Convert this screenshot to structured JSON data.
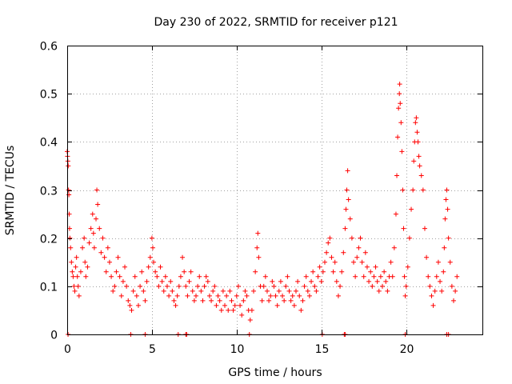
{
  "chart_data": {
    "type": "scatter",
    "title": "Day 230 of 2022, SRMTID for receiver p121",
    "xlabel": "GPS time / hours",
    "ylabel": "SRMTID / TECUs",
    "xlim": [
      0,
      24.5
    ],
    "ylim": [
      0,
      0.6
    ],
    "xticks": [
      0,
      5,
      10,
      15,
      20
    ],
    "yticks": [
      0,
      0.1,
      0.2,
      0.3,
      0.4,
      0.5,
      0.6
    ],
    "xtick_labels": [
      "0",
      "5",
      "10",
      "15",
      "20"
    ],
    "ytick_labels": [
      "0",
      "0.1",
      "0.2",
      "0.3",
      "0.4",
      "0.5",
      "0.6"
    ],
    "grid": true,
    "marker": "plus",
    "color": "#ff0000",
    "series": [
      {
        "name": "SRMTID p121",
        "points": [
          [
            0.0,
            0.38
          ],
          [
            0.02,
            0.37
          ],
          [
            0.04,
            0.36
          ],
          [
            0.06,
            0.35
          ],
          [
            0.08,
            0.3
          ],
          [
            0.1,
            0.29
          ],
          [
            0.12,
            0.25
          ],
          [
            0.14,
            0.22
          ],
          [
            0.16,
            0.2
          ],
          [
            0.2,
            0.18
          ],
          [
            0.25,
            0.15
          ],
          [
            0.3,
            0.13
          ],
          [
            0.35,
            0.12
          ],
          [
            0.4,
            0.1
          ],
          [
            0.45,
            0.09
          ],
          [
            0.5,
            0.14
          ],
          [
            0.55,
            0.16
          ],
          [
            0.6,
            0.12
          ],
          [
            0.65,
            0.1
          ],
          [
            0.7,
            0.08
          ],
          [
            0.8,
            0.13
          ],
          [
            0.9,
            0.18
          ],
          [
            1.0,
            0.2
          ],
          [
            1.05,
            0.15
          ],
          [
            1.1,
            0.12
          ],
          [
            1.2,
            0.14
          ],
          [
            1.3,
            0.19
          ],
          [
            1.4,
            0.22
          ],
          [
            1.5,
            0.25
          ],
          [
            1.55,
            0.21
          ],
          [
            1.6,
            0.18
          ],
          [
            1.7,
            0.24
          ],
          [
            1.75,
            0.3
          ],
          [
            1.8,
            0.27
          ],
          [
            1.9,
            0.22
          ],
          [
            2.0,
            0.17
          ],
          [
            2.1,
            0.2
          ],
          [
            2.2,
            0.16
          ],
          [
            2.3,
            0.13
          ],
          [
            2.4,
            0.18
          ],
          [
            2.5,
            0.15
          ],
          [
            2.6,
            0.12
          ],
          [
            2.7,
            0.09
          ],
          [
            2.8,
            0.1
          ],
          [
            2.9,
            0.13
          ],
          [
            3.0,
            0.16
          ],
          [
            3.1,
            0.12
          ],
          [
            3.2,
            0.08
          ],
          [
            3.3,
            0.11
          ],
          [
            3.4,
            0.14
          ],
          [
            3.5,
            0.1
          ],
          [
            3.6,
            0.07
          ],
          [
            3.7,
            0.06
          ],
          [
            3.8,
            0.05
          ],
          [
            3.9,
            0.09
          ],
          [
            4.0,
            0.12
          ],
          [
            4.1,
            0.08
          ],
          [
            4.2,
            0.06
          ],
          [
            4.3,
            0.1
          ],
          [
            4.4,
            0.13
          ],
          [
            4.5,
            0.09
          ],
          [
            4.6,
            0.07
          ],
          [
            4.7,
            0.11
          ],
          [
            4.8,
            0.14
          ],
          [
            4.9,
            0.16
          ],
          [
            5.0,
            0.2
          ],
          [
            5.05,
            0.18
          ],
          [
            5.1,
            0.15
          ],
          [
            5.2,
            0.13
          ],
          [
            5.3,
            0.12
          ],
          [
            5.4,
            0.1
          ],
          [
            5.5,
            0.14
          ],
          [
            5.6,
            0.11
          ],
          [
            5.7,
            0.09
          ],
          [
            5.8,
            0.12
          ],
          [
            5.9,
            0.1
          ],
          [
            6.0,
            0.08
          ],
          [
            6.1,
            0.11
          ],
          [
            6.2,
            0.09
          ],
          [
            6.3,
            0.07
          ],
          [
            6.4,
            0.06
          ],
          [
            6.5,
            0.08
          ],
          [
            6.6,
            0.1
          ],
          [
            6.7,
            0.12
          ],
          [
            6.8,
            0.16
          ],
          [
            6.9,
            0.13
          ],
          [
            7.0,
            0.1
          ],
          [
            7.1,
            0.08
          ],
          [
            7.2,
            0.11
          ],
          [
            7.3,
            0.13
          ],
          [
            7.4,
            0.09
          ],
          [
            7.5,
            0.07
          ],
          [
            7.6,
            0.08
          ],
          [
            7.7,
            0.1
          ],
          [
            7.8,
            0.12
          ],
          [
            7.9,
            0.09
          ],
          [
            8.0,
            0.07
          ],
          [
            8.1,
            0.1
          ],
          [
            8.2,
            0.12
          ],
          [
            8.3,
            0.11
          ],
          [
            8.4,
            0.08
          ],
          [
            8.5,
            0.07
          ],
          [
            8.6,
            0.09
          ],
          [
            8.7,
            0.1
          ],
          [
            8.8,
            0.06
          ],
          [
            8.9,
            0.08
          ],
          [
            9.0,
            0.07
          ],
          [
            9.1,
            0.05
          ],
          [
            9.2,
            0.09
          ],
          [
            9.3,
            0.06
          ],
          [
            9.4,
            0.08
          ],
          [
            9.5,
            0.05
          ],
          [
            9.6,
            0.09
          ],
          [
            9.7,
            0.07
          ],
          [
            9.8,
            0.05
          ],
          [
            9.9,
            0.06
          ],
          [
            10.0,
            0.08
          ],
          [
            10.1,
            0.1
          ],
          [
            10.2,
            0.06
          ],
          [
            10.3,
            0.04
          ],
          [
            10.4,
            0.07
          ],
          [
            10.5,
            0.09
          ],
          [
            10.6,
            0.08
          ],
          [
            10.7,
            0.05
          ],
          [
            10.8,
            0.03
          ],
          [
            10.9,
            0.05
          ],
          [
            11.0,
            0.09
          ],
          [
            11.1,
            0.13
          ],
          [
            11.2,
            0.18
          ],
          [
            11.25,
            0.21
          ],
          [
            11.3,
            0.16
          ],
          [
            11.4,
            0.1
          ],
          [
            11.5,
            0.07
          ],
          [
            11.6,
            0.1
          ],
          [
            11.7,
            0.12
          ],
          [
            11.8,
            0.09
          ],
          [
            11.9,
            0.07
          ],
          [
            12.0,
            0.08
          ],
          [
            12.1,
            0.11
          ],
          [
            12.2,
            0.1
          ],
          [
            12.3,
            0.08
          ],
          [
            12.4,
            0.06
          ],
          [
            12.5,
            0.09
          ],
          [
            12.6,
            0.11
          ],
          [
            12.7,
            0.08
          ],
          [
            12.8,
            0.07
          ],
          [
            12.9,
            0.1
          ],
          [
            13.0,
            0.12
          ],
          [
            13.1,
            0.09
          ],
          [
            13.2,
            0.07
          ],
          [
            13.3,
            0.08
          ],
          [
            13.4,
            0.06
          ],
          [
            13.5,
            0.09
          ],
          [
            13.6,
            0.11
          ],
          [
            13.7,
            0.08
          ],
          [
            13.8,
            0.05
          ],
          [
            13.9,
            0.07
          ],
          [
            14.0,
            0.1
          ],
          [
            14.1,
            0.12
          ],
          [
            14.2,
            0.09
          ],
          [
            14.3,
            0.08
          ],
          [
            14.4,
            0.11
          ],
          [
            14.5,
            0.13
          ],
          [
            14.6,
            0.1
          ],
          [
            14.7,
            0.09
          ],
          [
            14.8,
            0.12
          ],
          [
            14.9,
            0.14
          ],
          [
            15.0,
            0.11
          ],
          [
            15.1,
            0.13
          ],
          [
            15.2,
            0.15
          ],
          [
            15.3,
            0.17
          ],
          [
            15.4,
            0.19
          ],
          [
            15.5,
            0.2
          ],
          [
            15.6,
            0.16
          ],
          [
            15.7,
            0.13
          ],
          [
            15.8,
            0.15
          ],
          [
            15.9,
            0.11
          ],
          [
            16.0,
            0.08
          ],
          [
            16.1,
            0.1
          ],
          [
            16.2,
            0.13
          ],
          [
            16.3,
            0.17
          ],
          [
            16.4,
            0.22
          ],
          [
            16.45,
            0.26
          ],
          [
            16.5,
            0.3
          ],
          [
            16.55,
            0.34
          ],
          [
            16.6,
            0.28
          ],
          [
            16.7,
            0.24
          ],
          [
            16.8,
            0.2
          ],
          [
            16.9,
            0.15
          ],
          [
            17.0,
            0.12
          ],
          [
            17.1,
            0.16
          ],
          [
            17.2,
            0.18
          ],
          [
            17.3,
            0.2
          ],
          [
            17.4,
            0.15
          ],
          [
            17.5,
            0.12
          ],
          [
            17.6,
            0.17
          ],
          [
            17.7,
            0.14
          ],
          [
            17.8,
            0.11
          ],
          [
            17.9,
            0.13
          ],
          [
            18.0,
            0.1
          ],
          [
            18.1,
            0.12
          ],
          [
            18.2,
            0.14
          ],
          [
            18.3,
            0.11
          ],
          [
            18.4,
            0.09
          ],
          [
            18.5,
            0.12
          ],
          [
            18.6,
            0.1
          ],
          [
            18.7,
            0.13
          ],
          [
            18.8,
            0.11
          ],
          [
            18.9,
            0.09
          ],
          [
            19.0,
            0.12
          ],
          [
            19.1,
            0.15
          ],
          [
            19.2,
            0.12
          ],
          [
            19.3,
            0.18
          ],
          [
            19.4,
            0.25
          ],
          [
            19.45,
            0.33
          ],
          [
            19.5,
            0.41
          ],
          [
            19.55,
            0.47
          ],
          [
            19.6,
            0.5
          ],
          [
            19.62,
            0.52
          ],
          [
            19.65,
            0.48
          ],
          [
            19.7,
            0.44
          ],
          [
            19.75,
            0.38
          ],
          [
            19.8,
            0.3
          ],
          [
            19.85,
            0.22
          ],
          [
            19.9,
            0.12
          ],
          [
            19.95,
            0.08
          ],
          [
            20.0,
            0.1
          ],
          [
            20.1,
            0.14
          ],
          [
            20.2,
            0.2
          ],
          [
            20.3,
            0.26
          ],
          [
            20.4,
            0.3
          ],
          [
            20.45,
            0.36
          ],
          [
            20.5,
            0.4
          ],
          [
            20.55,
            0.44
          ],
          [
            20.6,
            0.45
          ],
          [
            20.65,
            0.42
          ],
          [
            20.7,
            0.4
          ],
          [
            20.75,
            0.37
          ],
          [
            20.8,
            0.35
          ],
          [
            20.9,
            0.33
          ],
          [
            21.0,
            0.3
          ],
          [
            21.1,
            0.22
          ],
          [
            21.2,
            0.16
          ],
          [
            21.3,
            0.12
          ],
          [
            21.4,
            0.1
          ],
          [
            21.5,
            0.08
          ],
          [
            21.6,
            0.06
          ],
          [
            21.7,
            0.09
          ],
          [
            21.8,
            0.12
          ],
          [
            21.9,
            0.15
          ],
          [
            22.0,
            0.11
          ],
          [
            22.1,
            0.09
          ],
          [
            22.2,
            0.13
          ],
          [
            22.25,
            0.18
          ],
          [
            22.3,
            0.24
          ],
          [
            22.35,
            0.28
          ],
          [
            22.4,
            0.3
          ],
          [
            22.45,
            0.26
          ],
          [
            22.5,
            0.2
          ],
          [
            22.6,
            0.15
          ],
          [
            22.7,
            0.1
          ],
          [
            22.8,
            0.07
          ],
          [
            22.9,
            0.09
          ],
          [
            23.0,
            0.12
          ],
          [
            0.05,
            0.0
          ],
          [
            3.75,
            0.0
          ],
          [
            4.6,
            0.0
          ],
          [
            6.55,
            0.0
          ],
          [
            7.0,
            0.0
          ],
          [
            7.05,
            0.0
          ],
          [
            10.75,
            0.0
          ],
          [
            15.05,
            0.0
          ],
          [
            16.35,
            0.0
          ],
          [
            16.4,
            0.0
          ],
          [
            19.95,
            0.0
          ],
          [
            22.4,
            0.0
          ],
          [
            22.5,
            0.0
          ]
        ]
      }
    ]
  }
}
